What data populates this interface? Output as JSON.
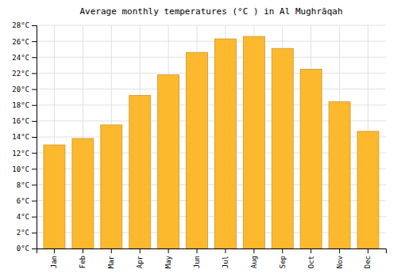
{
  "chart_data": {
    "type": "bar",
    "title": "Average monthly temperatures (°C ) in Al Mughrāqah",
    "categories": [
      "Jan",
      "Feb",
      "Mar",
      "Apr",
      "May",
      "Jun",
      "Jul",
      "Aug",
      "Sep",
      "Oct",
      "Nov",
      "Dec"
    ],
    "values": [
      13,
      13.8,
      15.5,
      19.2,
      21.8,
      24.6,
      26.3,
      26.6,
      25.1,
      22.5,
      18.4,
      14.7
    ],
    "color": "#FDB92E",
    "ylim": [
      0,
      28
    ],
    "yticks": [
      {
        "value": 0,
        "label": "0°C"
      },
      {
        "value": 2,
        "label": "2°C"
      },
      {
        "value": 4,
        "label": "4°C"
      },
      {
        "value": 6,
        "label": "6°C"
      },
      {
        "value": 8,
        "label": "8°C"
      },
      {
        "value": 10,
        "label": "10°C"
      },
      {
        "value": 12,
        "label": "12°C"
      },
      {
        "value": 14,
        "label": "14°C"
      },
      {
        "value": 16,
        "label": "16°C"
      },
      {
        "value": 18,
        "label": "18°C"
      },
      {
        "value": 20,
        "label": "20°C"
      },
      {
        "value": 22,
        "label": "22°C"
      },
      {
        "value": 24,
        "label": "24°C"
      },
      {
        "value": 26,
        "label": "26°C"
      },
      {
        "value": 28,
        "label": "28°C"
      }
    ],
    "grid": true
  }
}
